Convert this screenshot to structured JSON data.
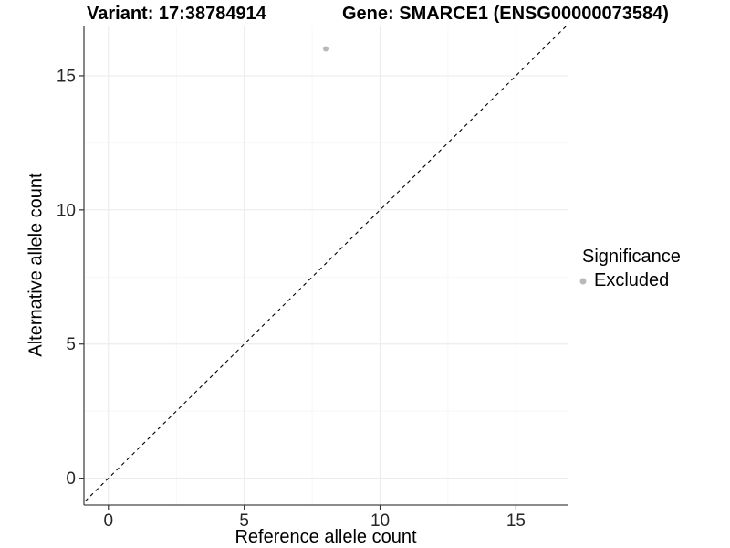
{
  "title_left": "Variant: 17:38784914",
  "title_right": "Gene: SMARCE1 (ENSG00000073584)",
  "chart_data": {
    "type": "scatter",
    "xlabel": "Reference allele count",
    "ylabel": "Alternative allele count",
    "xlim": [
      -0.9,
      16.9
    ],
    "ylim": [
      -1.0,
      16.87
    ],
    "x_major_ticks": [
      0,
      5,
      10,
      15
    ],
    "x_minor_ticks": [
      2.5,
      7.5,
      12.5
    ],
    "y_major_ticks": [
      0,
      5,
      10,
      15
    ],
    "y_minor_ticks": [
      2.5,
      7.5,
      12.5
    ],
    "grid": true,
    "points": [
      {
        "x": 8,
        "y": 16,
        "series": "Excluded"
      }
    ],
    "identity_line": {
      "type": "abline",
      "slope": 1,
      "intercept": 0,
      "style": "dashed"
    },
    "legend": {
      "position": "right",
      "title": "Significance",
      "items": [
        {
          "label": "Excluded",
          "color": "#b9b9b9",
          "shape": "circle"
        }
      ]
    }
  },
  "colors": {
    "background": "#ffffff",
    "axis_line": "#464646",
    "tick_mark": "#333333",
    "tick_label": "#262626",
    "grid_major": "#ececec",
    "grid_minor": "#f5f5f5",
    "point": "#b9b9b9",
    "identity_line": "#000000"
  }
}
